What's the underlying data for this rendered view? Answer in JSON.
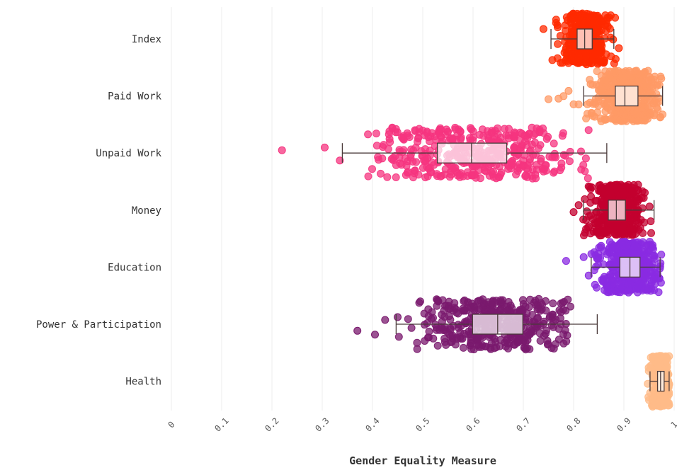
{
  "chart_data": {
    "type": "box-strip",
    "xlabel": "Gender Equality Measure",
    "xlim": [
      0,
      1
    ],
    "x_ticks": [
      "0",
      "0.1",
      "0.2",
      "0.3",
      "0.4",
      "0.5",
      "0.6",
      "0.7",
      "0.8",
      "0.9",
      "1"
    ],
    "grid": true,
    "categories": [
      "Index",
      "Paid Work",
      "Unpaid Work",
      "Money",
      "Education",
      "Power & Participation",
      "Health"
    ],
    "series": [
      {
        "category": "Index",
        "color": "#ff2a00",
        "min": 0.755,
        "q1": 0.807,
        "median": 0.822,
        "q3": 0.837,
        "max": 0.88,
        "outliers": [
          0.74,
          0.89
        ],
        "spread_lo": 0.75,
        "spread_hi": 0.885
      },
      {
        "category": "Paid Work",
        "color": "#ff9a66",
        "min": 0.82,
        "q1": 0.883,
        "median": 0.902,
        "q3": 0.928,
        "max": 0.977,
        "outliers": [
          0.75,
          0.77,
          0.78,
          0.79,
          0.8,
          0.81
        ],
        "spread_lo": 0.82,
        "spread_hi": 0.98
      },
      {
        "category": "Unpaid Work",
        "color": "#f5347f",
        "min": 0.34,
        "q1": 0.529,
        "median": 0.597,
        "q3": 0.667,
        "max": 0.866,
        "outliers": [
          0.22,
          0.305,
          0.335
        ],
        "spread_lo": 0.38,
        "spread_hi": 0.855
      },
      {
        "category": "Money",
        "color": "#c3002f",
        "min": 0.82,
        "q1": 0.869,
        "median": 0.885,
        "q3": 0.903,
        "max": 0.96,
        "outliers": [
          0.8,
          0.81
        ],
        "spread_lo": 0.815,
        "spread_hi": 0.96
      },
      {
        "category": "Education",
        "color": "#8a2be2",
        "min": 0.835,
        "q1": 0.892,
        "median": 0.912,
        "q3": 0.932,
        "max": 0.972,
        "outliers": [
          0.785,
          0.82,
          0.83
        ],
        "spread_lo": 0.835,
        "spread_hi": 0.975
      },
      {
        "category": "Power & Participation",
        "color": "#7a1a6e",
        "min": 0.447,
        "q1": 0.599,
        "median": 0.649,
        "q3": 0.699,
        "max": 0.847,
        "outliers": [
          0.37,
          0.405,
          0.425,
          0.45
        ],
        "spread_lo": 0.445,
        "spread_hi": 0.8
      },
      {
        "category": "Health",
        "color": "#ffbb88",
        "min": 0.952,
        "q1": 0.967,
        "median": 0.973,
        "q3": 0.98,
        "max": 0.99,
        "outliers": [],
        "spread_lo": 0.93,
        "spread_hi": 0.99
      }
    ]
  }
}
